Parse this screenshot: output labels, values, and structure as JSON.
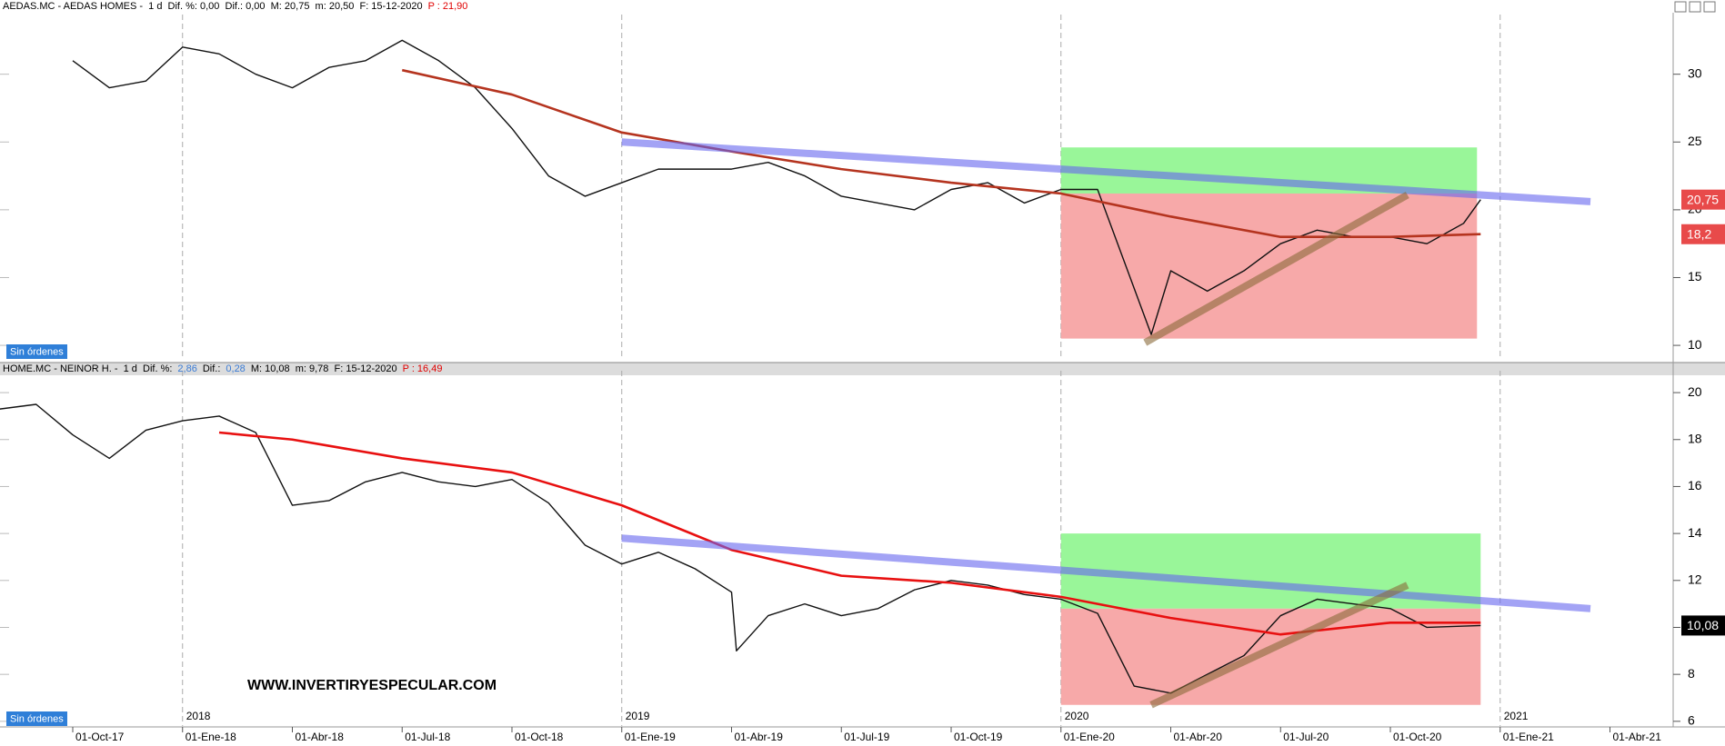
{
  "chart_data": [
    {
      "type": "line",
      "header": [
        {
          "text": "AEDAS.MC - AEDAS HOMES -  1 d  Dif. %: 0,00  Dif.: 0,00  M: 20,75  m: 20,50  F: 15-12-2020",
          "color": "#000000"
        },
        {
          "text": "P : 21,90",
          "color": "#e00000"
        }
      ],
      "orders_label": "Sin órdenes",
      "ylim": [
        9,
        34
      ],
      "yticks": [
        10,
        15,
        20,
        25,
        30
      ],
      "series": [
        {
          "color": "#111111",
          "x": [
            "01-Oct-17",
            "01-Nov-17",
            "01-Dic-17",
            "01-Ene-18",
            "01-Feb-18",
            "01-Mar-18",
            "01-Abr-18",
            "01-May-18",
            "01-Jun-18",
            "01-Jul-18",
            "01-Ago-18",
            "01-Sep-18",
            "01-Oct-18",
            "01-Nov-18",
            "01-Dic-18",
            "01-Ene-19",
            "01-Feb-19",
            "01-Mar-19",
            "01-Abr-19",
            "01-May-19",
            "01-Jun-19",
            "01-Jul-19",
            "01-Ago-19",
            "01-Sep-19",
            "01-Oct-19",
            "01-Nov-19",
            "01-Dic-19",
            "01-Ene-20",
            "01-Feb-20",
            "15-Mar-20",
            "01-Abr-20",
            "01-May-20",
            "01-Jun-20",
            "01-Jul-20",
            "01-Ago-20",
            "01-Sep-20",
            "01-Oct-20",
            "01-Nov-20",
            "01-Dic-20",
            "15-Dic-20"
          ],
          "values": [
            31,
            29,
            29.5,
            32,
            31.5,
            30,
            29,
            30.5,
            31,
            32.5,
            31,
            29,
            26,
            22.5,
            21,
            22,
            23,
            23,
            23,
            23.5,
            22.5,
            21,
            20.5,
            20,
            21.5,
            22,
            20.5,
            21.5,
            21.5,
            10.8,
            15.5,
            14,
            15.5,
            17.5,
            18.5,
            18,
            18,
            17.5,
            19,
            20.75
          ]
        },
        {
          "color": "#b5341f",
          "x": [
            "01-Jul-18",
            "01-Oct-18",
            "01-Ene-19",
            "01-Abr-19",
            "01-Jul-19",
            "01-Oct-19",
            "01-Ene-20",
            "01-Abr-20",
            "01-Jul-20",
            "01-Oct-20",
            "15-Dic-20"
          ],
          "values": [
            30.3,
            28.5,
            25.7,
            24.3,
            23,
            22,
            21.2,
            19.5,
            18,
            18,
            18.2
          ]
        }
      ],
      "shapes": [
        {
          "type": "rect",
          "x": [
            "01-Ene-20",
            "12-Dic-20"
          ],
          "y": [
            21.2,
            24.6
          ],
          "color": "#8ef58e"
        },
        {
          "type": "rect",
          "x": [
            "01-Ene-20",
            "12-Dic-20"
          ],
          "y": [
            10.5,
            21.2
          ],
          "color": "#f6a0a0"
        },
        {
          "type": "trendline",
          "x": [
            "01-Ene-19",
            "15-Mar-21"
          ],
          "y": [
            25,
            20.6
          ],
          "color": "#6666ee"
        },
        {
          "type": "trendline",
          "x": [
            "10-Mar-20",
            "15-Oct-20"
          ],
          "y": [
            10.2,
            21.1
          ],
          "color": "#8b6b3a"
        }
      ],
      "price_labels": [
        {
          "value": 20.75,
          "label": "20,75",
          "color": "#e84a4a"
        },
        {
          "value": 18.2,
          "label": "18,2",
          "color": "#e84a4a"
        }
      ]
    },
    {
      "type": "line",
      "header": [
        {
          "text": "HOME.MC - NEINOR H. -  1 d  Dif. %:",
          "color": "#000000"
        },
        {
          "text": "2,86",
          "color": "#3a7bd5"
        },
        {
          "text": "Dif.:",
          "color": "#000000"
        },
        {
          "text": "0,28",
          "color": "#3a7bd5"
        },
        {
          "text": "M: 10,08  m: 9,78  F: 15-12-2020",
          "color": "#000000"
        },
        {
          "text": "P : 16,49",
          "color": "#e00000"
        }
      ],
      "orders_label": "Sin órdenes",
      "watermark": "WWW.INVERTIRYESPECULAR.COM",
      "ylim": [
        5.8,
        20.7
      ],
      "yticks": [
        6,
        8,
        10,
        12,
        14,
        16,
        18,
        20
      ],
      "xlim": [
        "01-Ago-17",
        "25-May-21"
      ],
      "xticks": [
        "01-Oct-17",
        "01-Ene-18",
        "01-Abr-18",
        "01-Jul-18",
        "01-Oct-18",
        "01-Ene-19",
        "01-Abr-19",
        "01-Jul-19",
        "01-Oct-19",
        "01-Ene-20",
        "01-Abr-20",
        "01-Jul-20",
        "01-Oct-20",
        "01-Ene-21",
        "01-Abr-21"
      ],
      "year_markers": [
        {
          "value": "01-Ene-18",
          "label": "2018"
        },
        {
          "value": "01-Ene-19",
          "label": "2019"
        },
        {
          "value": "01-Ene-20",
          "label": "2020"
        },
        {
          "value": "01-Ene-21",
          "label": "2021"
        }
      ],
      "series": [
        {
          "color": "#111111",
          "x": [
            "01-Ago-17",
            "01-Sep-17",
            "01-Oct-17",
            "01-Nov-17",
            "01-Dic-17",
            "01-Ene-18",
            "01-Feb-18",
            "01-Mar-18",
            "01-Abr-18",
            "01-May-18",
            "01-Jun-18",
            "01-Jul-18",
            "01-Ago-18",
            "01-Sep-18",
            "01-Oct-18",
            "01-Nov-18",
            "01-Dic-18",
            "01-Ene-19",
            "01-Feb-19",
            "01-Mar-19",
            "01-Abr-19",
            "05-Abr-19",
            "01-May-19",
            "01-Jun-19",
            "01-Jul-19",
            "01-Ago-19",
            "01-Sep-19",
            "01-Oct-19",
            "01-Nov-19",
            "01-Dic-19",
            "01-Ene-20",
            "01-Feb-20",
            "01-Mar-20",
            "01-Abr-20",
            "01-May-20",
            "01-Jun-20",
            "01-Jul-20",
            "01-Ago-20",
            "01-Sep-20",
            "01-Oct-20",
            "01-Nov-20",
            "15-Dic-20"
          ],
          "values": [
            19.3,
            19.5,
            18.2,
            17.2,
            18.4,
            18.8,
            19,
            18.3,
            15.2,
            15.4,
            16.2,
            16.6,
            16.2,
            16,
            16.3,
            15.3,
            13.5,
            12.7,
            13.2,
            12.5,
            11.5,
            9,
            10.5,
            11,
            10.5,
            10.8,
            11.6,
            12,
            11.8,
            11.4,
            11.2,
            10.6,
            7.5,
            7.2,
            8,
            8.8,
            10.5,
            11.2,
            11,
            10.8,
            10,
            10.08
          ]
        },
        {
          "color": "#e81010",
          "x": [
            "01-Feb-18",
            "01-Abr-18",
            "01-Jul-18",
            "01-Oct-18",
            "01-Ene-19",
            "01-Abr-19",
            "01-Jul-19",
            "01-Oct-19",
            "01-Ene-20",
            "01-Abr-20",
            "01-Jul-20",
            "01-Oct-20",
            "15-Dic-20"
          ],
          "values": [
            18.3,
            18,
            17.2,
            16.6,
            15.2,
            13.3,
            12.2,
            11.9,
            11.3,
            10.4,
            9.7,
            10.2,
            10.2
          ]
        }
      ],
      "shapes": [
        {
          "type": "rect",
          "x": [
            "01-Ene-20",
            "15-Dic-20"
          ],
          "y": [
            10.8,
            14
          ],
          "color": "#8ef58e"
        },
        {
          "type": "rect",
          "x": [
            "01-Ene-20",
            "15-Dic-20"
          ],
          "y": [
            6.7,
            10.8
          ],
          "color": "#f6a0a0"
        },
        {
          "type": "trendline",
          "x": [
            "01-Ene-19",
            "15-Mar-21"
          ],
          "y": [
            13.8,
            10.8
          ],
          "color": "#6666ee"
        },
        {
          "type": "trendline",
          "x": [
            "15-Mar-20",
            "15-Oct-20"
          ],
          "y": [
            6.7,
            11.8
          ],
          "color": "#8b6b3a"
        }
      ],
      "price_labels": [
        {
          "value": 10.08,
          "label": "10,08",
          "color": "#000000"
        }
      ]
    }
  ]
}
